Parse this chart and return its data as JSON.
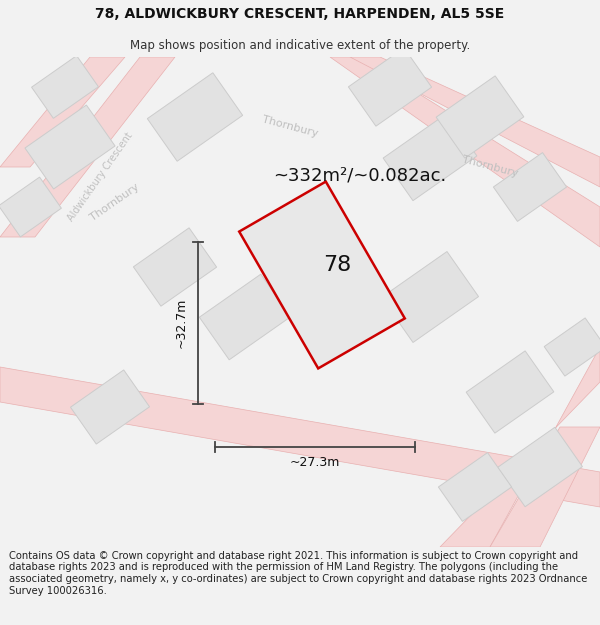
{
  "title": "78, ALDWICKBURY CRESCENT, HARPENDEN, AL5 5SE",
  "subtitle": "Map shows position and indicative extent of the property.",
  "area_text": "~332m²/~0.082ac.",
  "label_78": "78",
  "dim_vertical": "~32.7m",
  "dim_horizontal": "~27.3m",
  "footer": "Contains OS data © Crown copyright and database right 2021. This information is subject to Crown copyright and database rights 2023 and is reproduced with the permission of HM Land Registry. The polygons (including the associated geometry, namely x, y co-ordinates) are subject to Crown copyright and database rights 2023 Ordnance Survey 100026316.",
  "bg_color": "#f2f2f2",
  "map_bg": "#f0f0f0",
  "road_fill": "#f5d5d5",
  "road_edge": "#e8b0b0",
  "building_fill": "#e2e2e2",
  "building_edge": "#cccccc",
  "plot_fill": "#e8e8e8",
  "plot_edge": "#cc0000",
  "plot_edge_width": 1.8,
  "dim_color": "#444444",
  "road_label_color": "#c0c0c0",
  "title_fontsize": 10,
  "subtitle_fontsize": 8.5,
  "area_fontsize": 13,
  "label_fontsize": 16,
  "dim_fontsize": 9,
  "footer_fontsize": 7.2
}
